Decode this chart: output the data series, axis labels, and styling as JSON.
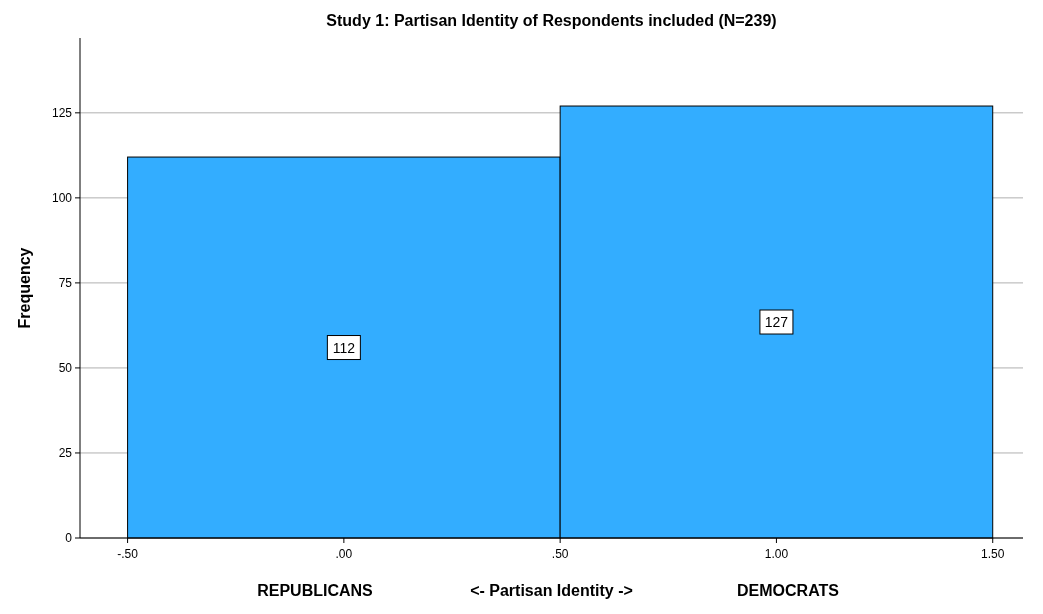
{
  "chart_data": {
    "type": "histogram",
    "title": "Study 1: Partisan Identity of Respondents included (N=239)",
    "xlabel": "<- Partisan Identity ->",
    "ylabel": "Frequency",
    "annotations": [
      "REPUBLICANS",
      "DEMOCRATS"
    ],
    "bins": [
      -0.5,
      0.5,
      1.5
    ],
    "values": [
      112,
      127
    ],
    "color": "#33adff",
    "data_labels": true,
    "xlim": [
      -0.61,
      1.57
    ],
    "xticks": [
      {
        "value": -0.5,
        "label": "-.50"
      },
      {
        "value": 0,
        "label": ".00"
      },
      {
        "value": 0.5,
        "label": ".50"
      },
      {
        "value": 1,
        "label": "1.00"
      },
      {
        "value": 1.5,
        "label": "1.50"
      }
    ],
    "ylim": [
      0,
      147
    ],
    "yticks": [
      0,
      25,
      50,
      75,
      100,
      125
    ],
    "grid": "y"
  }
}
